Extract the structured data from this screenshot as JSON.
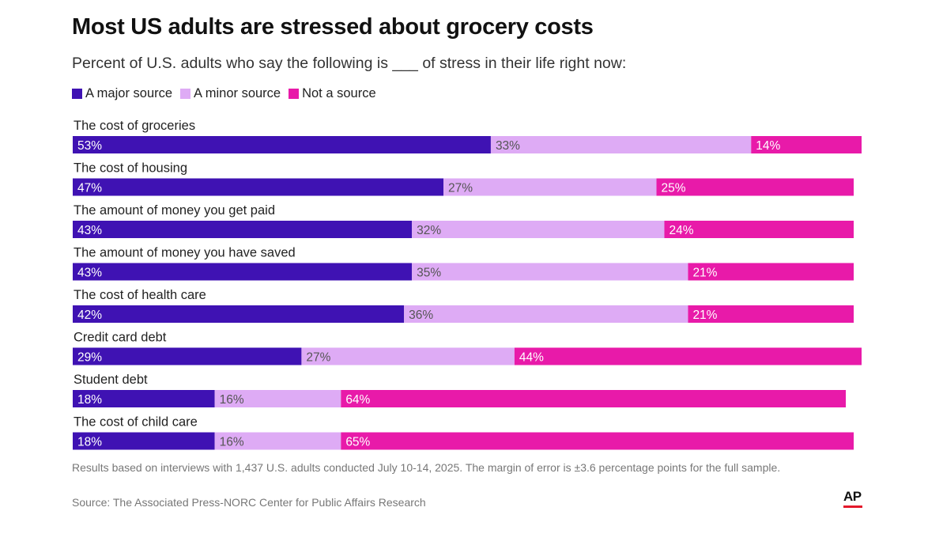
{
  "colors": {
    "major": "#3f12b3",
    "minor": "#deabf5",
    "not": "#e81aa9",
    "label_light": "#ffffff",
    "label_dark": "#555555"
  },
  "legend": {
    "items": [
      {
        "name": "A major source",
        "color": "#3f12b3"
      },
      {
        "name": "A minor source",
        "color": "#deabf5"
      },
      {
        "name": "Not a source",
        "color": "#e81aa9"
      }
    ]
  },
  "chart_data": {
    "type": "bar",
    "orientation": "horizontal",
    "stacked": true,
    "title": "Most US adults are stressed about grocery costs",
    "subtitle": "Percent of U.S. adults who say the following is ___ of stress in their life right now:",
    "categories": [
      "The cost of groceries",
      "The cost of housing",
      "The amount of money you get paid",
      "The amount of money you have saved",
      "The cost of health care",
      "Credit card debt",
      "Student debt",
      "The cost of child care"
    ],
    "series": [
      {
        "name": "A major source",
        "values": [
          53,
          47,
          43,
          43,
          42,
          29,
          18,
          18
        ]
      },
      {
        "name": "A minor source",
        "values": [
          33,
          27,
          32,
          35,
          36,
          27,
          16,
          16
        ]
      },
      {
        "name": "Not a source",
        "values": [
          14,
          25,
          24,
          21,
          21,
          44,
          64,
          65
        ]
      }
    ],
    "value_suffix": "%",
    "xlim": [
      0,
      100
    ],
    "legend_position": "top-left",
    "grid": false
  },
  "footer": {
    "notes": "Results based on interviews with 1,437 U.S. adults conducted July 10-14, 2025. The margin of error is ±3.6 percentage points for the full sample.",
    "source": "Source: The Associated Press-NORC Center for Public Affairs Research",
    "logo_text": "AP"
  }
}
